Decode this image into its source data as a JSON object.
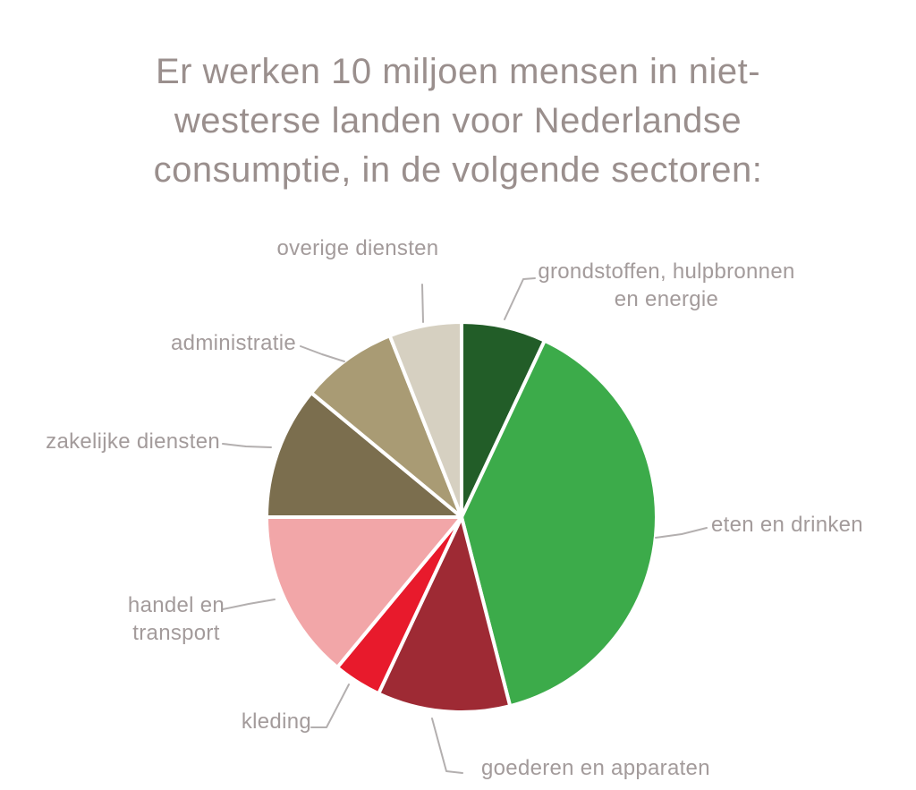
{
  "title": {
    "lines": [
      "Er werken 10 miljoen mensen in niet-",
      "westerse landen voor Nederlandse",
      "consumptie, in de volgende sectoren:"
    ]
  },
  "chart_data": {
    "type": "pie",
    "title": "Er werken 10 miljoen mensen in niet-westerse landen voor Nederlandse consumptie, in de volgende sectoren:",
    "legend_position": "outside-labels-with-leader-lines",
    "start_angle_deg": 0,
    "direction": "clockwise",
    "background": "#ffffff",
    "slice_gap_color": "#ffffff",
    "slices": [
      {
        "label": "grondstoffen, hulpbronnen en energie",
        "pct": 7,
        "color": "#225d28"
      },
      {
        "label": "eten en drinken",
        "pct": 39,
        "color": "#3cab4a"
      },
      {
        "label": "goederen en apparaten",
        "pct": 11,
        "color": "#9e2a34"
      },
      {
        "label": "kleding",
        "pct": 4,
        "color": "#e81a2c"
      },
      {
        "label": "handel en transport",
        "pct": 14,
        "color": "#f2a6a8"
      },
      {
        "label": "zakelijke diensten",
        "pct": 11,
        "color": "#7b6e4e"
      },
      {
        "label": "administratie",
        "pct": 8,
        "color": "#a99b74"
      },
      {
        "label": "overige diensten",
        "pct": 6,
        "color": "#d6d0c1"
      }
    ],
    "title_color": "#9a8f8d",
    "label_color": "#a39b9b",
    "leader_line_color": "#b3afaf"
  }
}
